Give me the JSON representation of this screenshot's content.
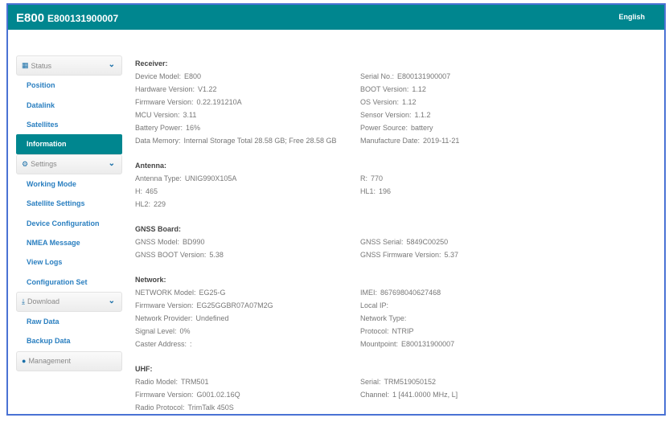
{
  "header": {
    "model": "E800",
    "serial": "E800131900007",
    "language": "English"
  },
  "sidebar": {
    "groups": [
      {
        "label": "Status",
        "icon": "grid-icon",
        "items": [
          "Position",
          "Datalink",
          "Satellites",
          "Information"
        ],
        "active": 3
      },
      {
        "label": "Settings",
        "icon": "gear-icon",
        "items": [
          "Working Mode",
          "Satellite Settings",
          "Device Configuration",
          "NMEA Message",
          "View Logs",
          "Configuration Set"
        ]
      },
      {
        "label": "Download",
        "icon": "download-icon",
        "items": [
          "Raw Data",
          "Backup Data"
        ]
      },
      {
        "label": "Management",
        "icon": "info-icon",
        "items": []
      }
    ]
  },
  "sections": [
    {
      "title": "Receiver:",
      "rows": [
        [
          [
            "Device Model:",
            "E800"
          ],
          [
            "Serial No.:",
            "E800131900007"
          ]
        ],
        [
          [
            "Hardware Version:",
            "V1.22"
          ],
          [
            "BOOT Version:",
            "1.12"
          ]
        ],
        [
          [
            "Firmware Version:",
            "0.22.191210A"
          ],
          [
            "OS Version:",
            "1.12"
          ]
        ],
        [
          [
            "MCU Version:",
            "3.11"
          ],
          [
            "Sensor Version:",
            "1.1.2"
          ]
        ],
        [
          [
            "Battery Power:",
            "16%"
          ],
          [
            "Power Source:",
            "battery"
          ]
        ],
        [
          [
            "Data Memory:",
            "Internal Storage Total 28.58 GB;  Free 28.58 GB"
          ],
          [
            "Manufacture Date:",
            "2019-11-21"
          ]
        ]
      ]
    },
    {
      "title": "Antenna:",
      "rows": [
        [
          [
            "Antenna Type:",
            "UNIG990X105A"
          ],
          [
            "R:",
            "770"
          ]
        ],
        [
          [
            "H:",
            "465"
          ],
          [
            "HL1:",
            "196"
          ]
        ],
        [
          [
            "HL2:",
            "229"
          ],
          null
        ]
      ]
    },
    {
      "title": "GNSS Board:",
      "rows": [
        [
          [
            "GNSS Model:",
            "BD990"
          ],
          [
            "GNSS Serial:",
            "5849C00250"
          ]
        ],
        [
          [
            "GNSS BOOT Version:",
            "5.38"
          ],
          [
            "GNSS Firmware Version:",
            "5.37"
          ]
        ]
      ]
    },
    {
      "title": "Network:",
      "rows": [
        [
          [
            "NETWORK Model:",
            "EG25-G"
          ],
          [
            "IMEI:",
            "867698040627468"
          ]
        ],
        [
          [
            "Firmware Version:",
            "EG25GGBR07A07M2G"
          ],
          [
            "Local IP:",
            ""
          ]
        ],
        [
          [
            "Network Provider:",
            "Undefined"
          ],
          [
            "Network Type:",
            ""
          ]
        ],
        [
          [
            "Signal Level:",
            "0%"
          ],
          [
            "Protocol:",
            "NTRIP"
          ]
        ],
        [
          [
            "Caster Address:",
            ":"
          ],
          [
            "Mountpoint:",
            "E800131900007"
          ]
        ]
      ]
    },
    {
      "title": "UHF:",
      "rows": [
        [
          [
            "Radio Model:",
            "TRM501"
          ],
          [
            "Serial:",
            "TRM519050152"
          ]
        ],
        [
          [
            "Firmware Version:",
            "G001.02.16Q"
          ],
          [
            "Channel:",
            "1 [441.0000 MHz, L]"
          ]
        ],
        [
          [
            "Radio Protocol:",
            "TrimTalk 450S"
          ],
          null
        ]
      ]
    }
  ]
}
